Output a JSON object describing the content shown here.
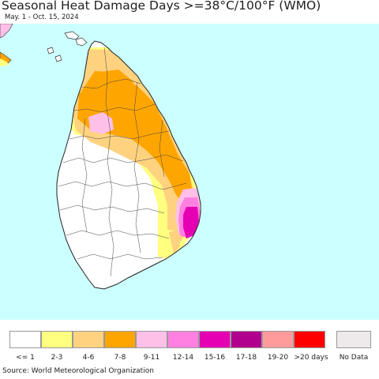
{
  "header": {
    "title": "Seasonal Heat Damage Days >=38°C/100°F (WMO)",
    "subtitle": "May. 1 - Oct. 15, 2024"
  },
  "map": {
    "region": "Sri Lanka",
    "colors": {
      "sea": "#ccffff",
      "land": "#ffffff",
      "border": "#333333"
    }
  },
  "legend": {
    "items": [
      {
        "label": "<= 1",
        "color": "#ffffff"
      },
      {
        "label": "2-3",
        "color": "#ffff80"
      },
      {
        "label": "4-6",
        "color": "#ffd280"
      },
      {
        "label": "7-8",
        "color": "#ffa500"
      },
      {
        "label": "9-11",
        "color": "#ffc0e8"
      },
      {
        "label": "12-14",
        "color": "#ff80e0"
      },
      {
        "label": "15-16",
        "color": "#e600b4"
      },
      {
        "label": "17-18",
        "color": "#b0008c"
      },
      {
        "label": "19-20",
        "color": "#ff9b9b"
      },
      {
        "label": ">20 days",
        "color": "#ff0000"
      }
    ],
    "no_data": {
      "label": "No Data",
      "color": "#eeeaec"
    }
  },
  "footer": {
    "source": "Source: World Meteorological Organization"
  }
}
